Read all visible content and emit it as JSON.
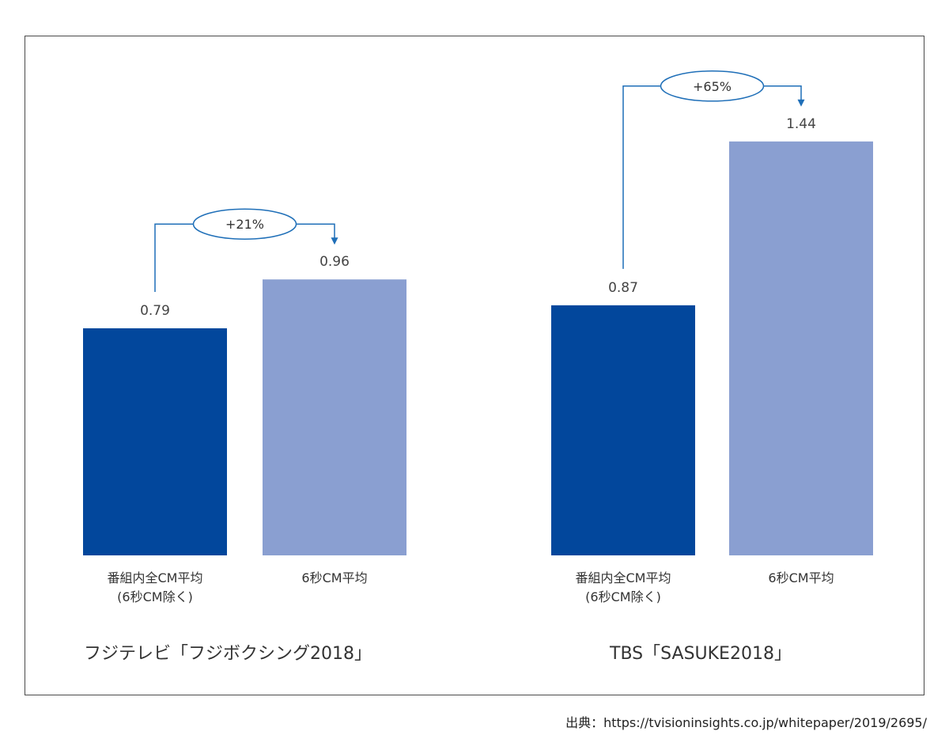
{
  "chart_data": [
    {
      "type": "bar",
      "title": "フジテレビ「フジボクシング2018」",
      "categories": [
        {
          "label_lines": [
            "番組内全CM平均",
            "(6秒CM除く)"
          ]
        },
        {
          "label_lines": [
            "6秒CM平均"
          ]
        }
      ],
      "values": [
        0.79,
        0.96
      ],
      "value_labels": [
        "0.79",
        "0.96"
      ],
      "change_label": "+21%",
      "ylim": [
        0,
        1.5
      ]
    },
    {
      "type": "bar",
      "title": "TBS「SASUKE2018」",
      "categories": [
        {
          "label_lines": [
            "番組内全CM平均",
            "(6秒CM除く)"
          ]
        },
        {
          "label_lines": [
            "6秒CM平均"
          ]
        }
      ],
      "values": [
        0.87,
        1.44
      ],
      "value_labels": [
        "0.87",
        "1.44"
      ],
      "change_label": "+65%",
      "ylim": [
        0,
        1.5
      ]
    }
  ],
  "colors": {
    "bar_primary": "#02479c",
    "bar_secondary": "#8a9fd1",
    "connector": "#1f6fb8",
    "text": "#444444"
  },
  "source": "出典：https://tvisioninsights.co.jp/whitepaper/2019/2695/"
}
